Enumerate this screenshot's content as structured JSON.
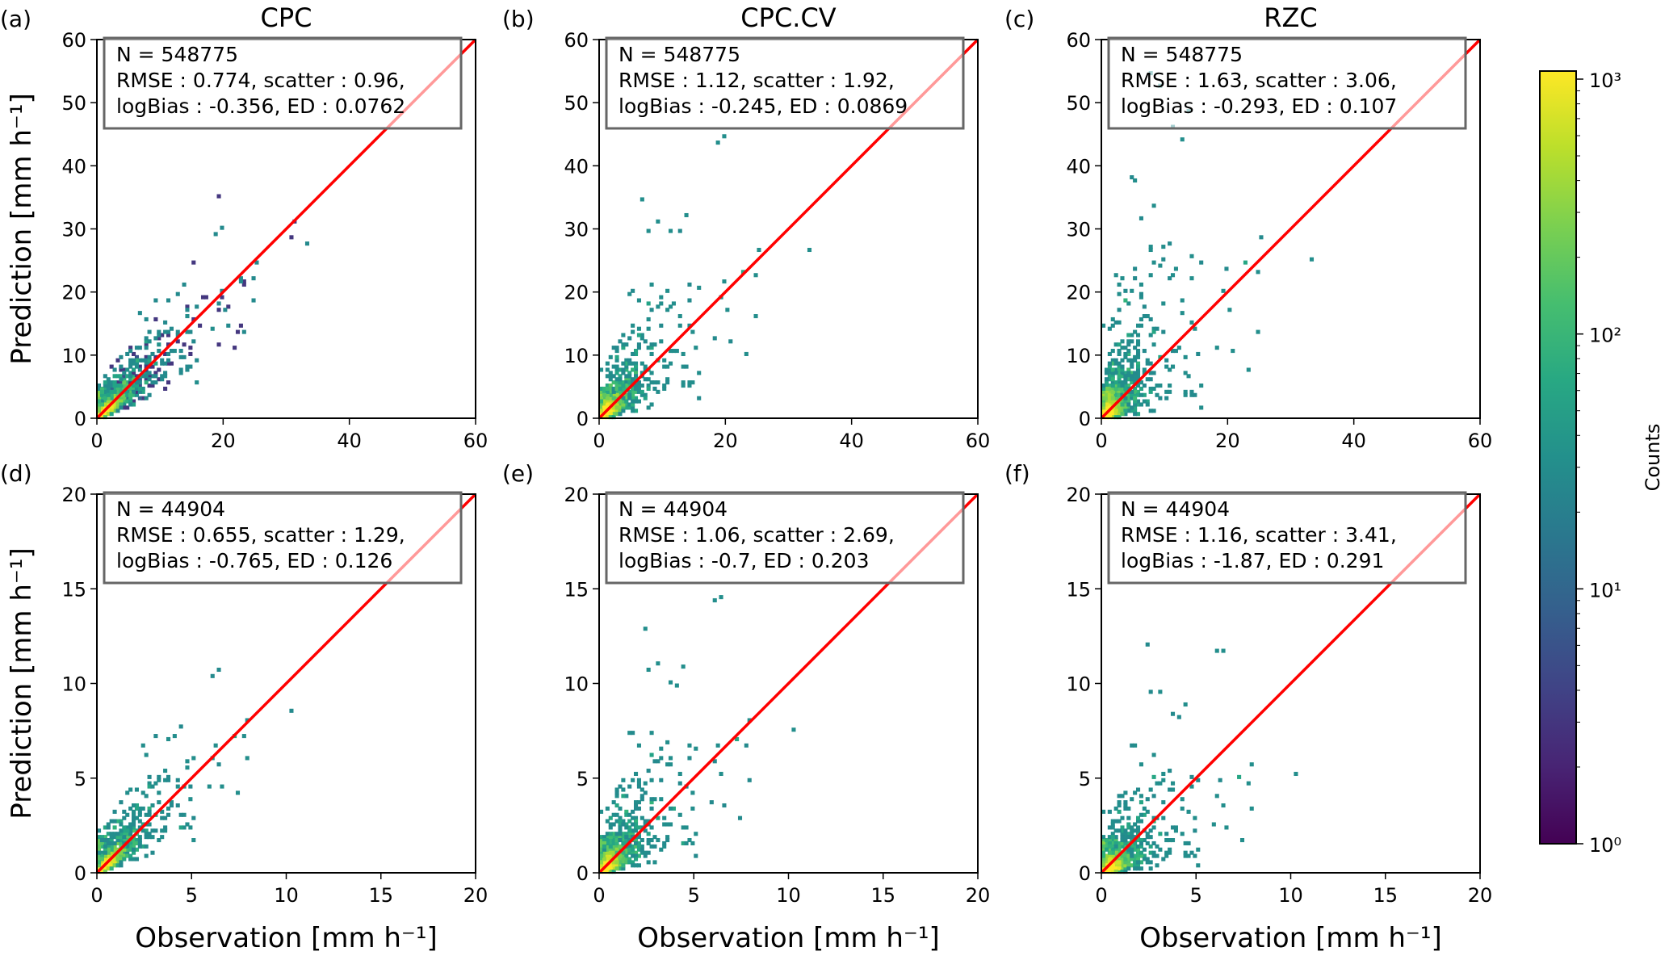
{
  "chart_data": {
    "type": "heatmap",
    "panels": [
      {
        "label": "(a)",
        "title": "CPC",
        "xlim": [
          0,
          60
        ],
        "ylim": [
          0,
          60
        ],
        "xticks": [
          0,
          20,
          40,
          60
        ],
        "yticks": [
          0,
          10,
          20,
          30,
          40,
          50,
          60
        ],
        "stats": [
          "N = 548775",
          "RMSE : 0.774, scatter : 0.96,",
          "logBias : -0.356, ED : 0.0762"
        ]
      },
      {
        "label": "(b)",
        "title": "CPC.CV",
        "xlim": [
          0,
          60
        ],
        "ylim": [
          0,
          60
        ],
        "xticks": [
          0,
          20,
          40,
          60
        ],
        "yticks": [
          0,
          10,
          20,
          30,
          40,
          50,
          60
        ],
        "stats": [
          "N = 548775",
          "RMSE : 1.12, scatter : 1.92,",
          "logBias : -0.245, ED : 0.0869"
        ]
      },
      {
        "label": "(c)",
        "title": "RZC",
        "xlim": [
          0,
          60
        ],
        "ylim": [
          0,
          60
        ],
        "xticks": [
          0,
          20,
          40,
          60
        ],
        "yticks": [
          0,
          10,
          20,
          30,
          40,
          50,
          60
        ],
        "stats": [
          "N = 548775",
          "RMSE : 1.63, scatter : 3.06,",
          "logBias : -0.293, ED : 0.107"
        ]
      },
      {
        "label": "(d)",
        "title": "",
        "xlim": [
          0,
          20
        ],
        "ylim": [
          0,
          20
        ],
        "xticks": [
          0,
          5,
          10,
          15,
          20
        ],
        "yticks": [
          0,
          5,
          10,
          15,
          20
        ],
        "stats": [
          "N = 44904",
          "RMSE : 0.655, scatter : 1.29,",
          "logBias : -0.765, ED : 0.126"
        ]
      },
      {
        "label": "(e)",
        "title": "",
        "xlim": [
          0,
          20
        ],
        "ylim": [
          0,
          20
        ],
        "xticks": [
          0,
          5,
          10,
          15,
          20
        ],
        "yticks": [
          0,
          5,
          10,
          15,
          20
        ],
        "stats": [
          "N = 44904",
          "RMSE : 1.06, scatter : 2.69,",
          "logBias : -0.7, ED : 0.203"
        ]
      },
      {
        "label": "(f)",
        "title": "",
        "xlim": [
          0,
          20
        ],
        "ylim": [
          0,
          20
        ],
        "xticks": [
          0,
          5,
          10,
          15,
          20
        ],
        "yticks": [
          0,
          5,
          10,
          15,
          20
        ],
        "stats": [
          "N = 44904",
          "RMSE : 1.16, scatter : 3.41,",
          "logBias : -1.87, ED : 0.291"
        ]
      }
    ],
    "xlabel": "Observation [mm h⁻¹]",
    "ylabel": "Prediction [mm h⁻¹]",
    "one_to_one_line_color": "#ff0000",
    "colormap": "viridis",
    "colorbar": {
      "label": "Counts",
      "scale": "log",
      "range": [
        1,
        1000
      ],
      "ticks": [
        "10⁰",
        "10¹",
        "10²",
        "10³"
      ]
    },
    "grid": false
  }
}
